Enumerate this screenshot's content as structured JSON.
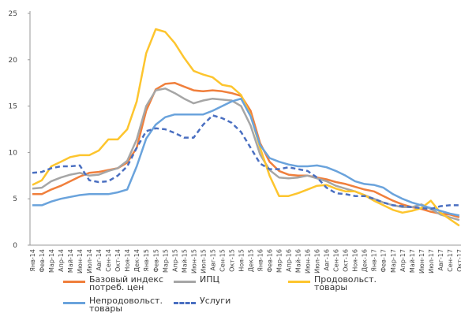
{
  "chart_data": {
    "type": "line",
    "categories": [
      "Янв-14",
      "Фев-14",
      "Мар-14",
      "Апр-14",
      "Май-14",
      "Июн-14",
      "Июл-14",
      "Авг-14",
      "Сен-14",
      "Окт-14",
      "Ноя-14",
      "Дек-14",
      "Янв-15",
      "Фев-15",
      "Мар-15",
      "Апр-15",
      "Май-15",
      "Июн-15",
      "Июл-15",
      "Авг-15",
      "Сен-15",
      "Окт-15",
      "Ноя-15",
      "Дек-15",
      "Янв-16",
      "Фев-16",
      "Мар-16",
      "Апр-16",
      "Май-16",
      "Июн-16",
      "Июл-16",
      "Авг-16",
      "Сен-16",
      "Окт-16",
      "Ноя-16",
      "Дек-16",
      "Янв-17",
      "Фев-17",
      "Мар-17",
      "Апр-17",
      "Май-17",
      "Июн-17",
      "Июл-17",
      "Авг-17",
      "Сен-17",
      "Окт-17"
    ],
    "ylim": [
      0,
      25
    ],
    "yticks": [
      0,
      5,
      10,
      15,
      20,
      25
    ],
    "series": [
      {
        "name": "Базовый индекс потреб. цен",
        "color": "#f07f3c",
        "dashed": false,
        "values": [
          5.5,
          5.5,
          6,
          6.4,
          6.9,
          7.4,
          7.8,
          7.9,
          8.1,
          8.3,
          8.9,
          10.5,
          14.5,
          16.8,
          17.4,
          17.5,
          17.1,
          16.7,
          16.6,
          16.7,
          16.6,
          16.4,
          16.1,
          14.5,
          11,
          9,
          8,
          7.6,
          7.5,
          7.5,
          7.3,
          7.1,
          6.8,
          6.6,
          6.3,
          6,
          5.8,
          5.3,
          4.8,
          4.4,
          4.1,
          3.9,
          3.6,
          3.4,
          3.3,
          3
        ]
      },
      {
        "name": "ИПЦ",
        "color": "#a6a6a6",
        "dashed": false,
        "values": [
          6.1,
          6.2,
          6.9,
          7.3,
          7.6,
          7.8,
          7.5,
          7.6,
          8,
          8.3,
          9.1,
          11.4,
          15,
          16.7,
          16.9,
          16.4,
          15.8,
          15.3,
          15.6,
          15.8,
          15.7,
          15.6,
          15,
          12.9,
          9.8,
          8.1,
          7.3,
          7.2,
          7.3,
          7.5,
          7.2,
          6.9,
          6.4,
          6.1,
          5.8,
          5.4,
          5,
          4.6,
          4.3,
          4.1,
          4.1,
          4.4,
          3.9,
          3.3,
          3,
          2.7
        ]
      },
      {
        "name": "Продовольст. товары",
        "color": "#fdc52e",
        "dashed": false,
        "values": [
          6.5,
          7,
          8.5,
          9,
          9.5,
          9.7,
          9.7,
          10.2,
          11.4,
          11.4,
          12.5,
          15.5,
          20.7,
          23.3,
          23,
          21.8,
          20.2,
          18.8,
          18.4,
          18.1,
          17.3,
          17.1,
          16.2,
          14,
          10.5,
          7.5,
          5.3,
          5.3,
          5.6,
          6,
          6.4,
          6.5,
          6.1,
          5.8,
          5.8,
          5.4,
          4.8,
          4.3,
          3.8,
          3.5,
          3.7,
          4,
          4.8,
          3.5,
          2.8,
          2.1
        ]
      },
      {
        "name": "Непродовольст. товары",
        "color": "#6aa3dc",
        "dashed": false,
        "values": [
          4.3,
          4.3,
          4.7,
          5,
          5.2,
          5.4,
          5.5,
          5.5,
          5.5,
          5.7,
          6,
          8.5,
          11.5,
          13,
          13.8,
          14.1,
          14.1,
          14.1,
          14.1,
          14.5,
          15,
          15.5,
          15.8,
          13.9,
          10.8,
          9.4,
          9,
          8.7,
          8.5,
          8.5,
          8.6,
          8.4,
          8,
          7.5,
          6.9,
          6.6,
          6.5,
          6.2,
          5.5,
          5,
          4.6,
          4.3,
          4,
          3.7,
          3.4,
          3.2
        ]
      },
      {
        "name": "Услуги",
        "color": "#4a6fc1",
        "dashed": true,
        "values": [
          7.8,
          7.9,
          8.3,
          8.5,
          8.5,
          8.6,
          7,
          6.8,
          6.9,
          7.5,
          8.5,
          10.5,
          12.3,
          12.6,
          12.5,
          12.1,
          11.6,
          11.6,
          13,
          14,
          13.7,
          13.2,
          12.2,
          10.5,
          8.8,
          8.2,
          8.2,
          8.4,
          8.2,
          8,
          7.3,
          6.2,
          5.6,
          5.5,
          5.3,
          5.3,
          5,
          4.6,
          4.3,
          4.2,
          4.1,
          4,
          3.9,
          4.2,
          4.3,
          4.3
        ]
      }
    ]
  }
}
